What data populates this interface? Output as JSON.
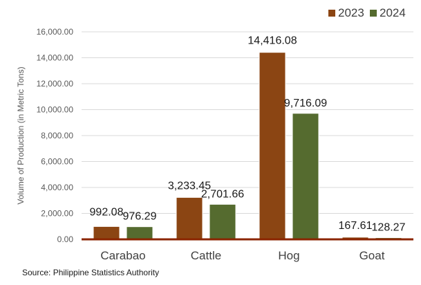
{
  "chart_data": {
    "type": "bar",
    "categories": [
      "Carabao",
      "Cattle",
      "Hog",
      "Goat"
    ],
    "series": [
      {
        "name": "2023",
        "values": [
          992.08,
          3233.45,
          14416.08,
          167.61
        ],
        "labels": [
          "992.08",
          "3,233.45",
          "14,416.08",
          "167.61"
        ],
        "color": "#8B4513"
      },
      {
        "name": "2024",
        "values": [
          976.29,
          2701.66,
          9716.09,
          128.27
        ],
        "labels": [
          "976.29",
          "2,701.66",
          "9,716.09",
          "128.27"
        ],
        "color": "#556B2F"
      }
    ],
    "ylabel": "Volume of Production (in Metric Tons)",
    "ylim": [
      0,
      16000
    ],
    "yticks": [
      0,
      2000,
      4000,
      6000,
      8000,
      10000,
      12000,
      14000,
      16000
    ],
    "ytick_labels": [
      "0.00",
      "2,000.00",
      "4,000.00",
      "6,000.00",
      "8,000.00",
      "10,000.00",
      "12,000.00",
      "14,000.00",
      "16,000.00"
    ],
    "grid": true,
    "legend_position": "top-right",
    "axis_color": "#8B2500",
    "grid_color": "#d9d9d9"
  },
  "source": "Source: Philippine Statistics Authority"
}
